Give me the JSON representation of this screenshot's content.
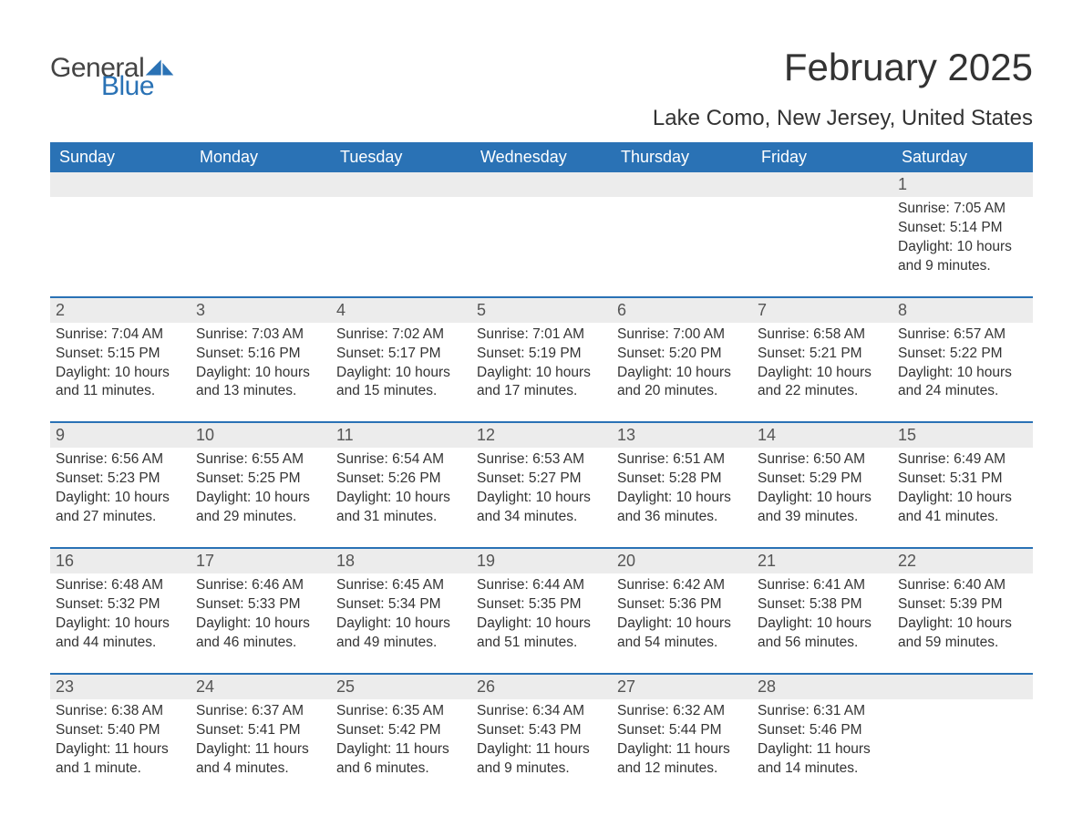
{
  "logo": {
    "text1": "General",
    "text2": "Blue",
    "accent_color": "#2a72b5"
  },
  "title": "February 2025",
  "subtitle": "Lake Como, New Jersey, United States",
  "header_bg": "#2a72b5",
  "header_fg": "#ffffff",
  "daynum_bg": "#ececec",
  "row_border": "#2a72b5",
  "text_color": "#333333",
  "font_family": "Arial",
  "columns": [
    "Sunday",
    "Monday",
    "Tuesday",
    "Wednesday",
    "Thursday",
    "Friday",
    "Saturday"
  ],
  "weeks": [
    [
      null,
      null,
      null,
      null,
      null,
      null,
      {
        "n": "1",
        "sunrise": "7:05 AM",
        "sunset": "5:14 PM",
        "daylight": "10 hours and 9 minutes."
      }
    ],
    [
      {
        "n": "2",
        "sunrise": "7:04 AM",
        "sunset": "5:15 PM",
        "daylight": "10 hours and 11 minutes."
      },
      {
        "n": "3",
        "sunrise": "7:03 AM",
        "sunset": "5:16 PM",
        "daylight": "10 hours and 13 minutes."
      },
      {
        "n": "4",
        "sunrise": "7:02 AM",
        "sunset": "5:17 PM",
        "daylight": "10 hours and 15 minutes."
      },
      {
        "n": "5",
        "sunrise": "7:01 AM",
        "sunset": "5:19 PM",
        "daylight": "10 hours and 17 minutes."
      },
      {
        "n": "6",
        "sunrise": "7:00 AM",
        "sunset": "5:20 PM",
        "daylight": "10 hours and 20 minutes."
      },
      {
        "n": "7",
        "sunrise": "6:58 AM",
        "sunset": "5:21 PM",
        "daylight": "10 hours and 22 minutes."
      },
      {
        "n": "8",
        "sunrise": "6:57 AM",
        "sunset": "5:22 PM",
        "daylight": "10 hours and 24 minutes."
      }
    ],
    [
      {
        "n": "9",
        "sunrise": "6:56 AM",
        "sunset": "5:23 PM",
        "daylight": "10 hours and 27 minutes."
      },
      {
        "n": "10",
        "sunrise": "6:55 AM",
        "sunset": "5:25 PM",
        "daylight": "10 hours and 29 minutes."
      },
      {
        "n": "11",
        "sunrise": "6:54 AM",
        "sunset": "5:26 PM",
        "daylight": "10 hours and 31 minutes."
      },
      {
        "n": "12",
        "sunrise": "6:53 AM",
        "sunset": "5:27 PM",
        "daylight": "10 hours and 34 minutes."
      },
      {
        "n": "13",
        "sunrise": "6:51 AM",
        "sunset": "5:28 PM",
        "daylight": "10 hours and 36 minutes."
      },
      {
        "n": "14",
        "sunrise": "6:50 AM",
        "sunset": "5:29 PM",
        "daylight": "10 hours and 39 minutes."
      },
      {
        "n": "15",
        "sunrise": "6:49 AM",
        "sunset": "5:31 PM",
        "daylight": "10 hours and 41 minutes."
      }
    ],
    [
      {
        "n": "16",
        "sunrise": "6:48 AM",
        "sunset": "5:32 PM",
        "daylight": "10 hours and 44 minutes."
      },
      {
        "n": "17",
        "sunrise": "6:46 AM",
        "sunset": "5:33 PM",
        "daylight": "10 hours and 46 minutes."
      },
      {
        "n": "18",
        "sunrise": "6:45 AM",
        "sunset": "5:34 PM",
        "daylight": "10 hours and 49 minutes."
      },
      {
        "n": "19",
        "sunrise": "6:44 AM",
        "sunset": "5:35 PM",
        "daylight": "10 hours and 51 minutes."
      },
      {
        "n": "20",
        "sunrise": "6:42 AM",
        "sunset": "5:36 PM",
        "daylight": "10 hours and 54 minutes."
      },
      {
        "n": "21",
        "sunrise": "6:41 AM",
        "sunset": "5:38 PM",
        "daylight": "10 hours and 56 minutes."
      },
      {
        "n": "22",
        "sunrise": "6:40 AM",
        "sunset": "5:39 PM",
        "daylight": "10 hours and 59 minutes."
      }
    ],
    [
      {
        "n": "23",
        "sunrise": "6:38 AM",
        "sunset": "5:40 PM",
        "daylight": "11 hours and 1 minute."
      },
      {
        "n": "24",
        "sunrise": "6:37 AM",
        "sunset": "5:41 PM",
        "daylight": "11 hours and 4 minutes."
      },
      {
        "n": "25",
        "sunrise": "6:35 AM",
        "sunset": "5:42 PM",
        "daylight": "11 hours and 6 minutes."
      },
      {
        "n": "26",
        "sunrise": "6:34 AM",
        "sunset": "5:43 PM",
        "daylight": "11 hours and 9 minutes."
      },
      {
        "n": "27",
        "sunrise": "6:32 AM",
        "sunset": "5:44 PM",
        "daylight": "11 hours and 12 minutes."
      },
      {
        "n": "28",
        "sunrise": "6:31 AM",
        "sunset": "5:46 PM",
        "daylight": "11 hours and 14 minutes."
      },
      null
    ]
  ],
  "labels": {
    "sunrise": "Sunrise: ",
    "sunset": "Sunset: ",
    "daylight": "Daylight: "
  }
}
